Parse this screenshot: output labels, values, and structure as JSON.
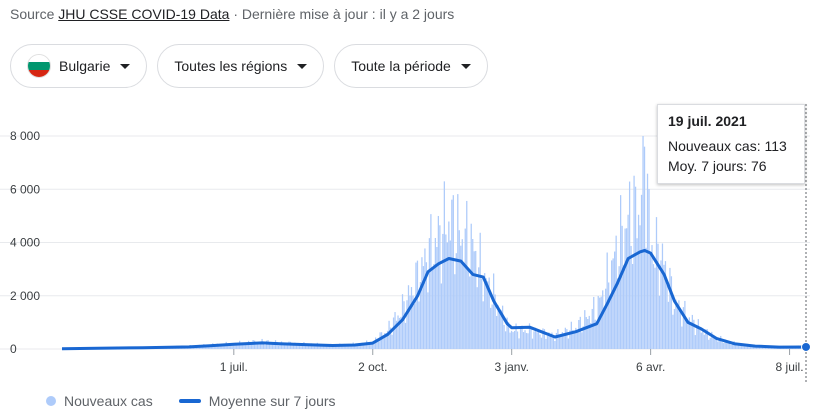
{
  "source": {
    "prefix": "Source",
    "link": "JHU CSSE COVID-19 Data",
    "suffix": "· Dernière mise à jour : il y a 2 jours"
  },
  "filters": {
    "country": "Bulgarie",
    "region": "Toutes les régions",
    "period": "Toute la période"
  },
  "colors": {
    "bars": "#aecbfa",
    "line": "#1967d2",
    "grid": "#e8eaed",
    "flag": [
      "#ffffff",
      "#00966e",
      "#d62612"
    ]
  },
  "icons": [
    "flag-bulgaria-icon",
    "chevron-down-icon"
  ],
  "tooltip": {
    "date": "19 juil. 2021",
    "cases_label": "Nouveaux cas: 113",
    "avg_label": "Moy. 7 jours: 76"
  },
  "legend": {
    "bars": "Nouveaux cas",
    "line": "Moyenne sur 7 jours"
  },
  "chart_data": {
    "type": "bar",
    "x_range": [
      "2020-03-08",
      "2021-07-19"
    ],
    "ylim": [
      0,
      8000
    ],
    "y_ticks": [
      0,
      2000,
      4000,
      6000,
      8000
    ],
    "y_tick_labels": [
      "0",
      "2 000",
      "4 000",
      "6 000",
      "8 000"
    ],
    "x_ticks": [
      "2020-07-01",
      "2020-10-02",
      "2021-01-03",
      "2021-04-06",
      "2021-07-08"
    ],
    "x_tick_labels": [
      "1 juil.",
      "2 oct.",
      "3 janv.",
      "6 avr.",
      "8 juil."
    ],
    "series": [
      {
        "name": "Nouveaux cas",
        "kind": "bar",
        "points": [
          [
            "2020-03-08",
            0
          ],
          [
            "2020-04-01",
            40
          ],
          [
            "2020-05-01",
            60
          ],
          [
            "2020-06-01",
            100
          ],
          [
            "2020-06-15",
            150
          ],
          [
            "2020-07-01",
            200
          ],
          [
            "2020-07-20",
            280
          ],
          [
            "2020-08-01",
            230
          ],
          [
            "2020-08-20",
            180
          ],
          [
            "2020-09-05",
            140
          ],
          [
            "2020-09-20",
            170
          ],
          [
            "2020-10-02",
            250
          ],
          [
            "2020-10-12",
            700
          ],
          [
            "2020-10-22",
            1500
          ],
          [
            "2020-11-01",
            2600
          ],
          [
            "2020-11-08",
            3500
          ],
          [
            "2020-11-15",
            4100
          ],
          [
            "2020-11-22",
            4800
          ],
          [
            "2020-11-30",
            4200
          ],
          [
            "2020-12-08",
            3800
          ],
          [
            "2020-12-15",
            2700
          ],
          [
            "2020-12-22",
            2000
          ],
          [
            "2020-12-31",
            900
          ],
          [
            "2021-01-03",
            700
          ],
          [
            "2021-01-15",
            700
          ],
          [
            "2021-02-01",
            500
          ],
          [
            "2021-02-15",
            800
          ],
          [
            "2021-03-01",
            1500
          ],
          [
            "2021-03-08",
            2500
          ],
          [
            "2021-03-15",
            3800
          ],
          [
            "2021-03-22",
            4800
          ],
          [
            "2021-03-30",
            5200
          ],
          [
            "2021-04-02",
            7600
          ],
          [
            "2021-04-06",
            3900
          ],
          [
            "2021-04-15",
            3200
          ],
          [
            "2021-04-22",
            1700
          ],
          [
            "2021-05-01",
            1200
          ],
          [
            "2021-05-10",
            700
          ],
          [
            "2021-05-20",
            400
          ],
          [
            "2021-06-01",
            200
          ],
          [
            "2021-06-15",
            100
          ],
          [
            "2021-07-01",
            80
          ],
          [
            "2021-07-19",
            113
          ]
        ]
      },
      {
        "name": "Moyenne sur 7 jours",
        "kind": "line",
        "points": [
          [
            "2020-03-08",
            10
          ],
          [
            "2020-04-01",
            30
          ],
          [
            "2020-05-01",
            50
          ],
          [
            "2020-06-01",
            80
          ],
          [
            "2020-06-15",
            120
          ],
          [
            "2020-07-01",
            180
          ],
          [
            "2020-07-20",
            230
          ],
          [
            "2020-08-01",
            200
          ],
          [
            "2020-08-20",
            160
          ],
          [
            "2020-09-05",
            130
          ],
          [
            "2020-09-20",
            150
          ],
          [
            "2020-10-02",
            220
          ],
          [
            "2020-10-12",
            550
          ],
          [
            "2020-10-22",
            1100
          ],
          [
            "2020-11-01",
            2000
          ],
          [
            "2020-11-08",
            2900
          ],
          [
            "2020-11-15",
            3200
          ],
          [
            "2020-11-22",
            3400
          ],
          [
            "2020-11-30",
            3300
          ],
          [
            "2020-12-08",
            2800
          ],
          [
            "2020-12-15",
            2700
          ],
          [
            "2020-12-22",
            1800
          ],
          [
            "2020-12-31",
            950
          ],
          [
            "2021-01-03",
            800
          ],
          [
            "2021-01-15",
            820
          ],
          [
            "2021-02-01",
            450
          ],
          [
            "2021-02-15",
            650
          ],
          [
            "2021-03-01",
            950
          ],
          [
            "2021-03-08",
            1700
          ],
          [
            "2021-03-15",
            2500
          ],
          [
            "2021-03-22",
            3400
          ],
          [
            "2021-03-30",
            3650
          ],
          [
            "2021-04-02",
            3700
          ],
          [
            "2021-04-06",
            3600
          ],
          [
            "2021-04-15",
            2800
          ],
          [
            "2021-04-22",
            1800
          ],
          [
            "2021-05-01",
            1000
          ],
          [
            "2021-05-10",
            750
          ],
          [
            "2021-05-20",
            400
          ],
          [
            "2021-06-01",
            200
          ],
          [
            "2021-06-15",
            110
          ],
          [
            "2021-07-01",
            70
          ],
          [
            "2021-07-19",
            76
          ]
        ]
      }
    ],
    "highlight": {
      "date": "2021-07-19",
      "cases": 113,
      "avg": 76
    },
    "grid": true,
    "legend_position": "bottom-left"
  }
}
